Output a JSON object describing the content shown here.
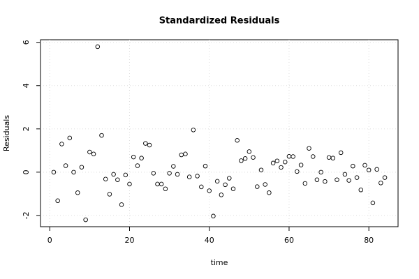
{
  "chart_data": {
    "type": "scatter",
    "title": "Standardized Residuals",
    "x_label": "time",
    "y_label": "Residuals",
    "x": [
      1,
      2,
      3,
      4,
      5,
      6,
      7,
      8,
      9,
      10,
      11,
      12,
      13,
      14,
      15,
      16,
      17,
      18,
      19,
      20,
      21,
      22,
      23,
      24,
      25,
      26,
      27,
      28,
      29,
      30,
      31,
      32,
      33,
      34,
      35,
      36,
      37,
      38,
      39,
      40,
      41,
      42,
      43,
      44,
      45,
      46,
      47,
      48,
      49,
      50,
      51,
      52,
      53,
      54,
      55,
      56,
      57,
      58,
      59,
      60,
      61,
      62,
      63,
      64,
      65,
      66,
      67,
      68,
      69,
      70,
      71,
      72,
      73,
      74,
      75,
      76,
      77,
      78,
      79,
      80,
      81,
      82,
      83,
      84
    ],
    "values": [
      0.0,
      -1.32,
      1.3,
      0.3,
      1.58,
      0.0,
      -0.95,
      0.23,
      -2.2,
      0.93,
      0.84,
      5.8,
      1.7,
      -0.32,
      -1.02,
      -0.1,
      -0.35,
      -1.5,
      -0.13,
      -0.55,
      0.7,
      0.3,
      0.65,
      1.33,
      1.25,
      -0.05,
      -0.55,
      -0.55,
      -0.77,
      -0.05,
      0.27,
      -0.1,
      0.8,
      0.84,
      -0.22,
      1.95,
      -0.18,
      -0.68,
      0.28,
      -0.86,
      -2.03,
      -0.42,
      -1.05,
      -0.58,
      -0.28,
      -0.77,
      1.47,
      0.53,
      0.63,
      0.95,
      0.68,
      -0.67,
      0.1,
      -0.57,
      -0.95,
      0.42,
      0.52,
      0.22,
      0.47,
      0.73,
      0.72,
      0.03,
      0.33,
      -0.52,
      1.1,
      0.72,
      -0.35,
      0.0,
      -0.43,
      0.68,
      0.65,
      -0.35,
      0.9,
      -0.1,
      -0.38,
      0.28,
      -0.25,
      -0.82,
      0.32,
      0.1,
      -1.42,
      0.13,
      -0.5,
      -0.25
    ],
    "color": "#000000",
    "xlim": [
      -2.32,
      87.32
    ],
    "ylim": [
      -2.52,
      6.12
    ],
    "xticks": [
      0,
      20,
      40,
      60,
      80
    ],
    "yticks": [
      -2,
      0,
      2,
      4,
      6
    ],
    "grid": true
  }
}
